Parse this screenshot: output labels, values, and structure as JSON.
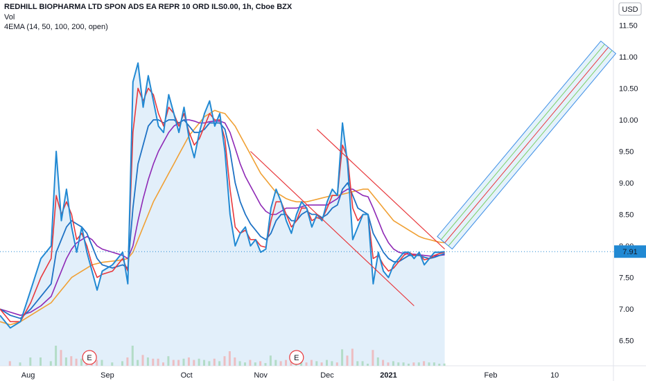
{
  "header": {
    "title": "REDHILL BIOPHARMA LTD SPON ADS EA REPR 10 ORD ILS0.00, 1h, Cboe BZX",
    "vol_label": "Vol",
    "ema_label": "4EMA (14, 50, 100, 200, open)"
  },
  "currency_label": "USD",
  "last_price_label": "7.91",
  "colors": {
    "price": "#2189d3",
    "ema14": "#e8373b",
    "ema50": "#1e72c5",
    "ema100": "#8e28b5",
    "ema200": "#f0a033",
    "area_fill": "#d6e8f8",
    "channel_red": "#e8373b",
    "forecast_blue": "#3d8ee6",
    "forecast_fill": "#d2eaf8",
    "forecast_green": "#7ccf6a",
    "earnings_marker": "#e8373b",
    "last_price_badge": "#2189d3"
  },
  "earnings_marker_label": "E",
  "chart_data": {
    "type": "line",
    "interval": "1h",
    "xlabel": "",
    "ylabel": "",
    "x_tick_labels": [
      "Aug",
      "Sep",
      "Oct",
      "Nov",
      "Dec",
      "2021",
      "Feb",
      "10"
    ],
    "y_tick_labels": [
      "6.50",
      "7.00",
      "7.50",
      "8.00",
      "8.50",
      "9.00",
      "9.50",
      "10.00",
      "10.50",
      "11.00",
      "11.50"
    ],
    "ylim": [
      6.1,
      11.9
    ],
    "xlim": [
      0,
      120
    ],
    "grid": false,
    "last_price": 7.91,
    "x": [
      0,
      2,
      4,
      6,
      8,
      10,
      11,
      12,
      13,
      14,
      15,
      16,
      17,
      18,
      19,
      20,
      22,
      24,
      25,
      26,
      27,
      28,
      29,
      30,
      31,
      32,
      33,
      34,
      35,
      36,
      37,
      38,
      39,
      40,
      41,
      42,
      43,
      44,
      45,
      46,
      47,
      48,
      49,
      50,
      51,
      52,
      53,
      54,
      55,
      56,
      57,
      58,
      59,
      60,
      61,
      62,
      63,
      64,
      65,
      66,
      67,
      68,
      69,
      70,
      71,
      72,
      73,
      74,
      75,
      76,
      77,
      78,
      79,
      80,
      81,
      82,
      83,
      84,
      85,
      86,
      87
    ],
    "series": [
      {
        "name": "",
        "values": [
          6.9,
          6.7,
          6.8,
          7.3,
          7.8,
          8.0,
          9.5,
          8.4,
          8.9,
          8.3,
          7.9,
          8.3,
          7.9,
          7.6,
          7.3,
          7.6,
          7.7,
          7.9,
          7.4,
          10.6,
          10.9,
          10.2,
          10.7,
          10.3,
          9.9,
          9.8,
          10.4,
          10.1,
          9.8,
          10.2,
          9.7,
          9.4,
          9.8,
          10.1,
          10.3,
          9.9,
          10.1,
          9.5,
          8.5,
          8.0,
          8.2,
          8.3,
          8.0,
          8.1,
          7.9,
          7.95,
          8.6,
          8.9,
          8.7,
          8.4,
          8.2,
          8.5,
          8.7,
          8.6,
          8.3,
          8.5,
          8.4,
          8.7,
          8.9,
          8.8,
          9.95,
          9.3,
          8.1,
          8.3,
          8.5,
          8.5,
          7.4,
          7.9,
          7.6,
          7.5,
          7.7,
          7.8,
          7.9,
          7.9,
          7.8,
          7.9,
          7.7,
          7.8,
          7.9,
          7.9,
          7.91
        ]
      },
      {
        "name": "",
        "values": [
          7.0,
          6.8,
          6.8,
          7.1,
          7.5,
          7.8,
          8.8,
          8.5,
          8.7,
          8.5,
          8.1,
          8.2,
          8.0,
          7.7,
          7.5,
          7.55,
          7.6,
          7.8,
          7.6,
          9.8,
          10.5,
          10.3,
          10.5,
          10.4,
          10.1,
          9.9,
          10.2,
          10.1,
          9.9,
          10.1,
          9.8,
          9.6,
          9.7,
          9.9,
          10.1,
          10.0,
          10.0,
          9.7,
          8.9,
          8.3,
          8.2,
          8.25,
          8.1,
          8.1,
          8.0,
          7.98,
          8.4,
          8.7,
          8.7,
          8.5,
          8.3,
          8.4,
          8.6,
          8.6,
          8.4,
          8.45,
          8.42,
          8.6,
          8.8,
          8.8,
          9.6,
          9.4,
          8.6,
          8.4,
          8.5,
          8.5,
          7.8,
          7.85,
          7.7,
          7.6,
          7.65,
          7.75,
          7.85,
          7.9,
          7.85,
          7.87,
          7.78,
          7.8,
          7.85,
          7.88,
          7.9
        ]
      },
      {
        "name": "",
        "values": [
          7.0,
          6.9,
          6.85,
          7.0,
          7.2,
          7.4,
          7.9,
          8.1,
          8.3,
          8.4,
          8.35,
          8.3,
          8.2,
          8.0,
          7.8,
          7.7,
          7.65,
          7.7,
          7.65,
          8.6,
          9.3,
          9.6,
          9.9,
          10.0,
          10.0,
          9.95,
          10.0,
          10.0,
          9.95,
          10.0,
          9.9,
          9.8,
          9.8,
          9.85,
          9.95,
          9.95,
          9.95,
          9.85,
          9.5,
          9.0,
          8.7,
          8.5,
          8.35,
          8.25,
          8.15,
          8.1,
          8.2,
          8.4,
          8.5,
          8.5,
          8.4,
          8.4,
          8.5,
          8.55,
          8.5,
          8.5,
          8.45,
          8.5,
          8.6,
          8.65,
          8.9,
          9.0,
          8.8,
          8.6,
          8.55,
          8.5,
          8.2,
          8.05,
          7.9,
          7.8,
          7.75,
          7.75,
          7.8,
          7.85,
          7.85,
          7.85,
          7.82,
          7.8,
          7.82,
          7.85,
          7.88
        ]
      },
      {
        "name": "",
        "values": [
          7.0,
          6.95,
          6.9,
          6.95,
          7.05,
          7.2,
          7.4,
          7.6,
          7.8,
          7.95,
          8.05,
          8.1,
          8.15,
          8.1,
          8.0,
          7.95,
          7.9,
          7.85,
          7.8,
          8.0,
          8.4,
          8.75,
          9.05,
          9.3,
          9.5,
          9.65,
          9.8,
          9.9,
          9.95,
          10.0,
          10.0,
          9.98,
          9.95,
          9.95,
          9.97,
          9.98,
          9.98,
          9.95,
          9.8,
          9.55,
          9.3,
          9.1,
          8.95,
          8.8,
          8.65,
          8.55,
          8.5,
          8.5,
          8.55,
          8.6,
          8.6,
          8.6,
          8.62,
          8.65,
          8.65,
          8.65,
          8.65,
          8.65,
          8.7,
          8.75,
          8.85,
          8.9,
          8.9,
          8.85,
          8.8,
          8.78,
          8.6,
          8.4,
          8.2,
          8.05,
          7.95,
          7.9,
          7.88,
          7.87,
          7.87,
          7.86,
          7.85,
          7.84,
          7.84,
          7.85,
          7.86
        ]
      },
      {
        "name": "",
        "values": [
          6.8,
          6.75,
          6.8,
          6.9,
          7.0,
          7.1,
          7.2,
          7.3,
          7.4,
          7.5,
          7.55,
          7.6,
          7.65,
          7.7,
          7.72,
          7.74,
          7.76,
          7.78,
          7.8,
          7.9,
          8.1,
          8.3,
          8.5,
          8.7,
          8.85,
          9.0,
          9.15,
          9.3,
          9.45,
          9.6,
          9.75,
          9.85,
          9.95,
          10.05,
          10.1,
          10.15,
          10.12,
          10.1,
          10.0,
          9.9,
          9.75,
          9.6,
          9.45,
          9.3,
          9.15,
          9.05,
          8.95,
          8.85,
          8.8,
          8.75,
          8.72,
          8.7,
          8.7,
          8.7,
          8.72,
          8.74,
          8.76,
          8.78,
          8.8,
          8.8,
          8.82,
          8.84,
          8.86,
          8.88,
          8.9,
          8.9,
          8.8,
          8.7,
          8.6,
          8.5,
          8.4,
          8.35,
          8.3,
          8.25,
          8.2,
          8.15,
          8.12,
          8.1,
          8.08,
          8.06,
          8.05
        ]
      }
    ],
    "down_channel": {
      "upper": [
        [
          62,
          9.85
        ],
        [
          87,
          7.95
        ]
      ],
      "lower": [
        [
          49,
          9.5
        ],
        [
          81,
          7.05
        ]
      ]
    },
    "projected_channel": {
      "start": [
        [
          87,
          8.05
        ],
        [
          87,
          8.35
        ]
      ],
      "end": [
        [
          119,
          11.15
        ],
        [
          119,
          11.85
        ]
      ]
    },
    "earnings_markers_x": [
      17.5,
      58
    ]
  }
}
